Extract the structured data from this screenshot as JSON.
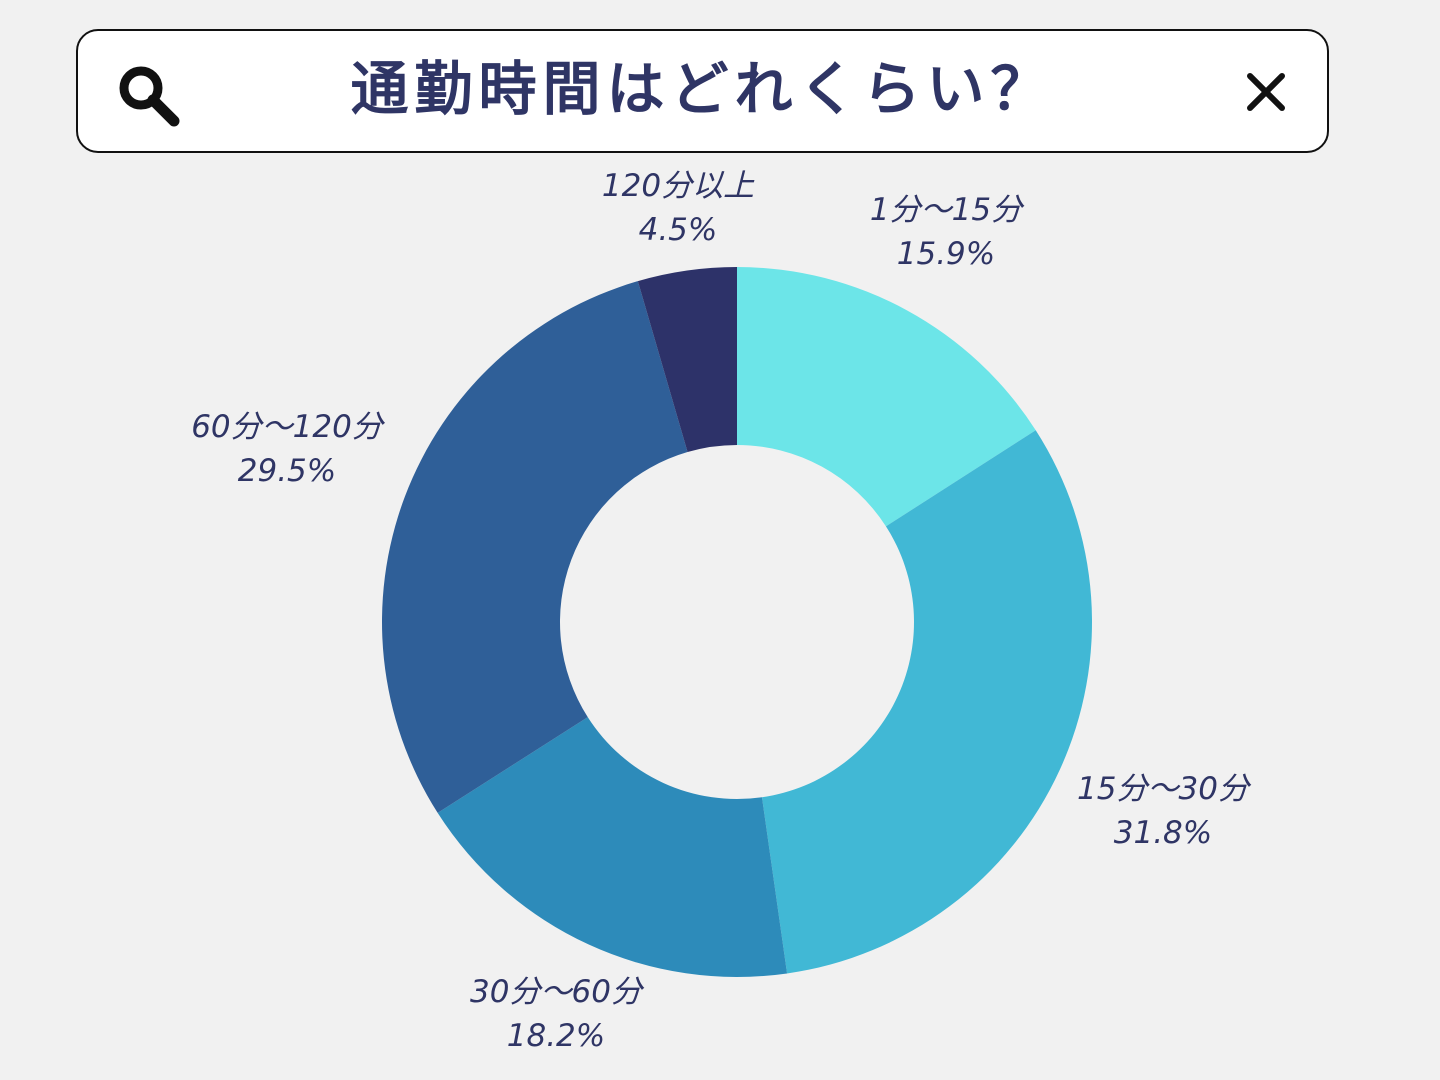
{
  "search": {
    "title": "通勤時間はどれくらい？"
  },
  "icons": {
    "search": "search-icon",
    "close": "close-icon"
  },
  "colors": {
    "background": "#f1f1f1",
    "text": "#2f3565",
    "bar_border": "#111111"
  },
  "chart_data": {
    "type": "pie",
    "donut": true,
    "start": "12 o'clock, clockwise",
    "categories": [
      "1分～15分",
      "15分～30分",
      "30分～60分",
      "60分～120分",
      "120分以上"
    ],
    "values": [
      15.9,
      31.8,
      18.2,
      29.5,
      4.5
    ],
    "value_labels": [
      "15.9%",
      "31.8%",
      "18.2%",
      "29.5%",
      "4.5%"
    ],
    "colors": [
      "#6ce5e8",
      "#41b8d5",
      "#2d8bba",
      "#2f5f98",
      "#2d3269"
    ],
    "legend": "none (labels beside slices)"
  }
}
